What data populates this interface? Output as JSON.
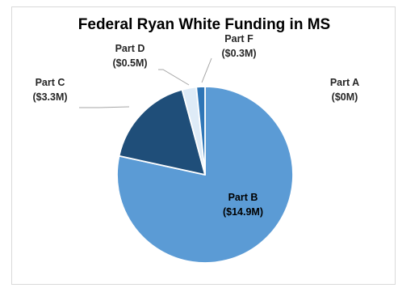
{
  "chart_data": {
    "type": "pie",
    "title": "Federal Ryan White Funding in MS",
    "slices": [
      {
        "name": "Part A",
        "value_label": "($0M)",
        "value": 0,
        "color": "#1f4e79"
      },
      {
        "name": "Part B",
        "value_label": "($14.9M)",
        "value": 14.9,
        "color": "#5b9bd5"
      },
      {
        "name": "Part C",
        "value_label": "($3.3M)",
        "value": 3.3,
        "color": "#1f4e79"
      },
      {
        "name": "Part D",
        "value_label": "($0.5M)",
        "value": 0.5,
        "color": "#deebf7"
      },
      {
        "name": "Part F",
        "value_label": "($0.3M)",
        "value": 0.3,
        "color": "#2e75b6"
      }
    ]
  }
}
